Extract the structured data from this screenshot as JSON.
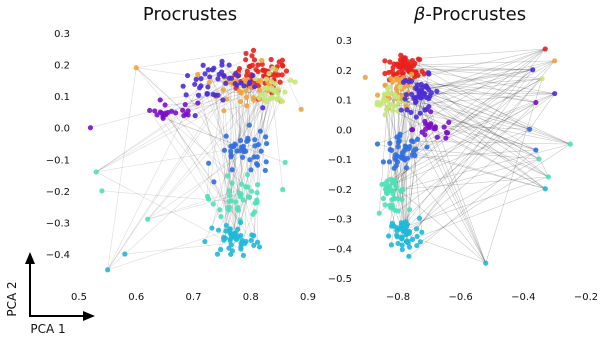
{
  "chart_data": [
    {
      "type": "scatter",
      "title": "Procrustes",
      "xlim": [
        0.5,
        0.9
      ],
      "ylim": [
        -0.5,
        0.3
      ],
      "xticks": [
        "0.5",
        "0.6",
        "0.7",
        "0.8",
        "0.9"
      ],
      "yticks": [
        "0.3",
        "0.2",
        "0.1",
        "0.0",
        "−0.1",
        "−0.2",
        "−0.3",
        "−0.4"
      ],
      "xtick_values": [
        0.5,
        0.6,
        0.7,
        0.8,
        0.9
      ],
      "ytick_values": [
        0.3,
        0.2,
        0.1,
        0.0,
        -0.1,
        -0.2,
        -0.3,
        -0.4
      ],
      "grid": false,
      "colormap": "rainbow",
      "points_approx": {
        "clusters": [
          {
            "color": "#e8211b",
            "center": [
              0.82,
              0.17
            ],
            "spread": [
              0.04,
              0.05
            ],
            "n": 60
          },
          {
            "color": "#f2a23c",
            "center": [
              0.79,
              0.13
            ],
            "spread": [
              0.06,
              0.06
            ],
            "n": 40
          },
          {
            "color": "#c7e67a",
            "center": [
              0.84,
              0.12
            ],
            "spread": [
              0.03,
              0.05
            ],
            "n": 30
          },
          {
            "color": "#4a2ed6",
            "center": [
              0.74,
              0.14
            ],
            "spread": [
              0.06,
              0.05
            ],
            "n": 45
          },
          {
            "color": "#7a10c8",
            "center": [
              0.65,
              0.05
            ],
            "spread": [
              0.06,
              0.03
            ],
            "n": 22
          },
          {
            "color": "#2f6fe0",
            "center": [
              0.79,
              -0.08
            ],
            "spread": [
              0.04,
              0.06
            ],
            "n": 40
          },
          {
            "color": "#4fe0b8",
            "center": [
              0.78,
              -0.22
            ],
            "spread": [
              0.04,
              0.05
            ],
            "n": 40
          },
          {
            "color": "#1fb8d8",
            "center": [
              0.77,
              -0.35
            ],
            "spread": [
              0.04,
              0.05
            ],
            "n": 45
          }
        ]
      }
    },
    {
      "type": "scatter",
      "title": "β-Procrustes",
      "title_prefix": "β",
      "title_suffix": "-Procrustes",
      "xlim": [
        -0.9,
        -0.2
      ],
      "ylim": [
        -0.5,
        0.3
      ],
      "xticks": [
        "−0.8",
        "−0.6",
        "−0.4",
        "−0.2"
      ],
      "yticks": [
        "0.3",
        "0.2",
        "0.1",
        "0.0",
        "−0.1",
        "−0.2",
        "−0.3",
        "−0.4",
        "−0.5"
      ],
      "xtick_values": [
        -0.8,
        -0.6,
        -0.4,
        -0.2
      ],
      "ytick_values": [
        0.3,
        0.2,
        0.1,
        0.0,
        -0.1,
        -0.2,
        -0.3,
        -0.4,
        -0.5
      ],
      "grid": false,
      "colormap": "rainbow",
      "points_approx": {
        "clusters": [
          {
            "color": "#e8211b",
            "center": [
              -0.78,
              0.2
            ],
            "spread": [
              0.05,
              0.04
            ],
            "n": 55
          },
          {
            "color": "#f2a23c",
            "center": [
              -0.8,
              0.14
            ],
            "spread": [
              0.05,
              0.05
            ],
            "n": 40
          },
          {
            "color": "#c7e67a",
            "center": [
              -0.83,
              0.1
            ],
            "spread": [
              0.03,
              0.04
            ],
            "n": 30
          },
          {
            "color": "#4a2ed6",
            "center": [
              -0.73,
              0.12
            ],
            "spread": [
              0.05,
              0.05
            ],
            "n": 40
          },
          {
            "color": "#7a10c8",
            "center": [
              -0.68,
              0.0
            ],
            "spread": [
              0.06,
              0.03
            ],
            "n": 22
          },
          {
            "color": "#2f6fe0",
            "center": [
              -0.78,
              -0.08
            ],
            "spread": [
              0.05,
              0.05
            ],
            "n": 40
          },
          {
            "color": "#4fe0b8",
            "center": [
              -0.82,
              -0.22
            ],
            "spread": [
              0.04,
              0.05
            ],
            "n": 40
          },
          {
            "color": "#1fb8d8",
            "center": [
              -0.78,
              -0.36
            ],
            "spread": [
              0.04,
              0.05
            ],
            "n": 45
          }
        ],
        "outliers_right": [
          {
            "color": "#e8211b",
            "x": -0.33,
            "y": 0.27
          },
          {
            "color": "#f2a23c",
            "x": -0.3,
            "y": 0.23
          },
          {
            "color": "#c7e67a",
            "x": -0.34,
            "y": 0.17
          },
          {
            "color": "#4a2ed6",
            "x": -0.3,
            "y": 0.12
          },
          {
            "color": "#4a2ed6",
            "x": -0.37,
            "y": 0.2
          },
          {
            "color": "#7a10c8",
            "x": -0.36,
            "y": 0.09
          },
          {
            "color": "#2f6fe0",
            "x": -0.38,
            "y": 0.0
          },
          {
            "color": "#2f6fe0",
            "x": -0.36,
            "y": -0.07
          },
          {
            "color": "#4fe0b8",
            "x": -0.25,
            "y": -0.05
          },
          {
            "color": "#4fe0b8",
            "x": -0.35,
            "y": -0.1
          },
          {
            "color": "#4fe0b8",
            "x": -0.32,
            "y": -0.16
          },
          {
            "color": "#1fb8d8",
            "x": -0.33,
            "y": -0.2
          },
          {
            "color": "#1fb8d8",
            "x": -0.52,
            "y": -0.45
          }
        ]
      }
    }
  ],
  "axes_legend": {
    "x_label": "PCA 1",
    "y_label": "PCA 2"
  }
}
